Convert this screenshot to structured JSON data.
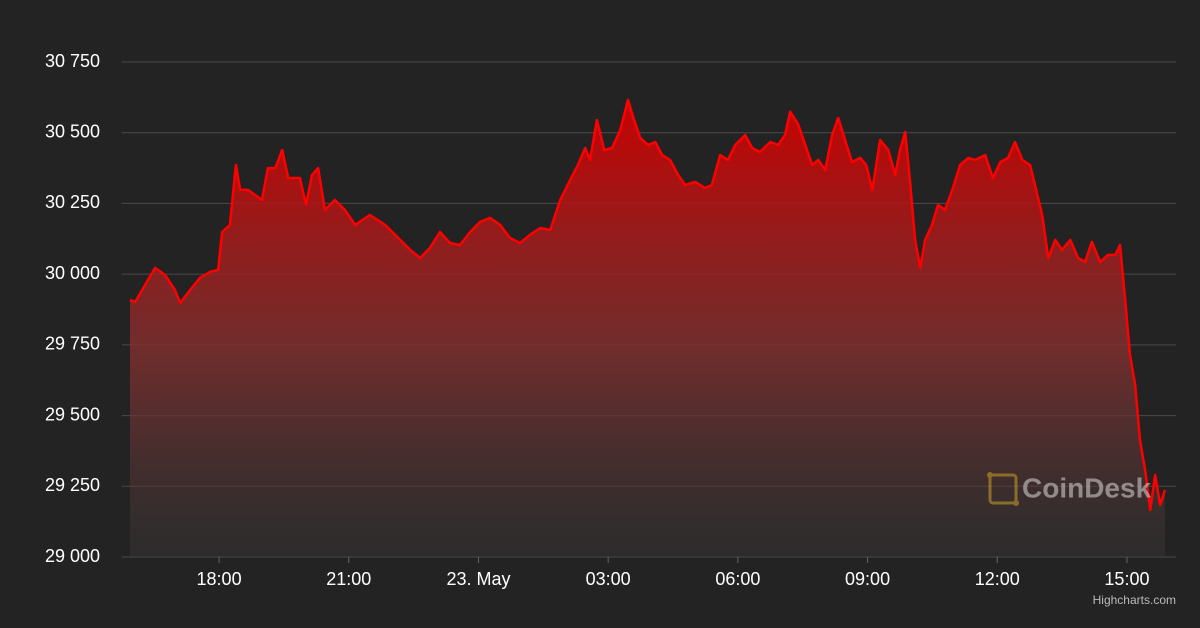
{
  "chart_data": {
    "type": "area",
    "color": "#ff0000",
    "grid": true,
    "x": [
      15.94,
      16.06,
      16.29,
      16.52,
      16.75,
      16.98,
      17.1,
      17.33,
      17.56,
      17.79,
      17.98,
      18.07,
      18.25,
      18.39,
      18.49,
      18.67,
      18.83,
      18.99,
      19.13,
      19.3,
      19.46,
      19.6,
      19.87,
      20.01,
      20.15,
      20.29,
      20.45,
      20.68,
      20.91,
      21.15,
      21.49,
      21.84,
      22.19,
      22.42,
      22.65,
      22.88,
      23.11,
      23.34,
      23.57,
      23.81,
      24.04,
      24.27,
      24.5,
      24.73,
      24.96,
      25.19,
      25.43,
      25.66,
      25.89,
      26.12,
      26.3,
      26.47,
      26.58,
      26.74,
      26.91,
      27.09,
      27.28,
      27.46,
      27.6,
      27.74,
      27.92,
      28.09,
      28.25,
      28.43,
      28.62,
      28.78,
      29.01,
      29.24,
      29.4,
      29.59,
      29.77,
      29.94,
      30.17,
      30.33,
      30.51,
      30.75,
      30.93,
      31.09,
      31.21,
      31.39,
      31.56,
      31.72,
      31.86,
      32.02,
      32.18,
      32.32,
      32.48,
      32.64,
      32.83,
      32.97,
      33.11,
      33.29,
      33.48,
      33.64,
      33.75,
      33.87,
      33.98,
      34.1,
      34.22,
      34.33,
      34.49,
      34.63,
      34.79,
      34.96,
      35.14,
      35.33,
      35.49,
      35.72,
      35.9,
      36.07,
      36.25,
      36.41,
      36.58,
      36.76,
      36.9,
      37.04,
      37.18,
      37.34,
      37.5,
      37.69,
      37.87,
      38.03,
      38.19,
      38.38,
      38.56,
      38.73,
      38.84,
      38.96,
      39.07,
      39.19,
      39.3,
      39.42,
      39.54,
      39.65,
      39.77,
      39.88
    ],
    "values": [
      29909,
      29902,
      29962,
      30022,
      29997,
      29944,
      29898,
      29944,
      29987,
      30008,
      30015,
      30149,
      30174,
      30386,
      30298,
      30298,
      30280,
      30262,
      30375,
      30375,
      30439,
      30340,
      30340,
      30245,
      30351,
      30375,
      30227,
      30262,
      30227,
      30174,
      30209,
      30174,
      30121,
      30086,
      30057,
      30093,
      30149,
      30110,
      30103,
      30149,
      30185,
      30199,
      30174,
      30128,
      30110,
      30139,
      30163,
      30156,
      30262,
      30333,
      30386,
      30446,
      30404,
      30545,
      30439,
      30446,
      30510,
      30616,
      30545,
      30482,
      30457,
      30467,
      30421,
      30404,
      30351,
      30315,
      30326,
      30305,
      30315,
      30421,
      30404,
      30457,
      30492,
      30446,
      30432,
      30467,
      30457,
      30492,
      30574,
      30531,
      30457,
      30386,
      30404,
      30368,
      30492,
      30552,
      30474,
      30396,
      30411,
      30386,
      30298,
      30474,
      30439,
      30351,
      30439,
      30503,
      30333,
      30121,
      30022,
      30121,
      30174,
      30245,
      30227,
      30298,
      30386,
      30411,
      30404,
      30421,
      30340,
      30396,
      30411,
      30467,
      30404,
      30386,
      30298,
      30209,
      30057,
      30121,
      30086,
      30121,
      30057,
      30043,
      30114,
      30043,
      30068,
      30068,
      30103,
      29909,
      29714,
      29608,
      29414,
      29308,
      29166,
      29290,
      29184,
      29237
    ],
    "xlim": [
      15.94,
      39.88
    ],
    "xticks": [
      {
        "value": 18,
        "label": "18:00"
      },
      {
        "value": 21,
        "label": "21:00"
      },
      {
        "value": 24,
        "label": "23. May"
      },
      {
        "value": 27,
        "label": "03:00"
      },
      {
        "value": 30,
        "label": "06:00"
      },
      {
        "value": 33,
        "label": "09:00"
      },
      {
        "value": 36,
        "label": "12:00"
      },
      {
        "value": 39,
        "label": "15:00"
      }
    ],
    "ylim": [
      29000,
      30750
    ],
    "yticks": [
      {
        "value": 29000,
        "label": "29 000"
      },
      {
        "value": 29250,
        "label": "29 250"
      },
      {
        "value": 29500,
        "label": "29 500"
      },
      {
        "value": 29750,
        "label": "29 750"
      },
      {
        "value": 30000,
        "label": "30 000"
      },
      {
        "value": 30250,
        "label": "30 250"
      },
      {
        "value": 30500,
        "label": "30 500"
      },
      {
        "value": 30750,
        "label": "30 750"
      }
    ],
    "watermark": "CoinDesk",
    "credits": "Highcharts.com"
  }
}
